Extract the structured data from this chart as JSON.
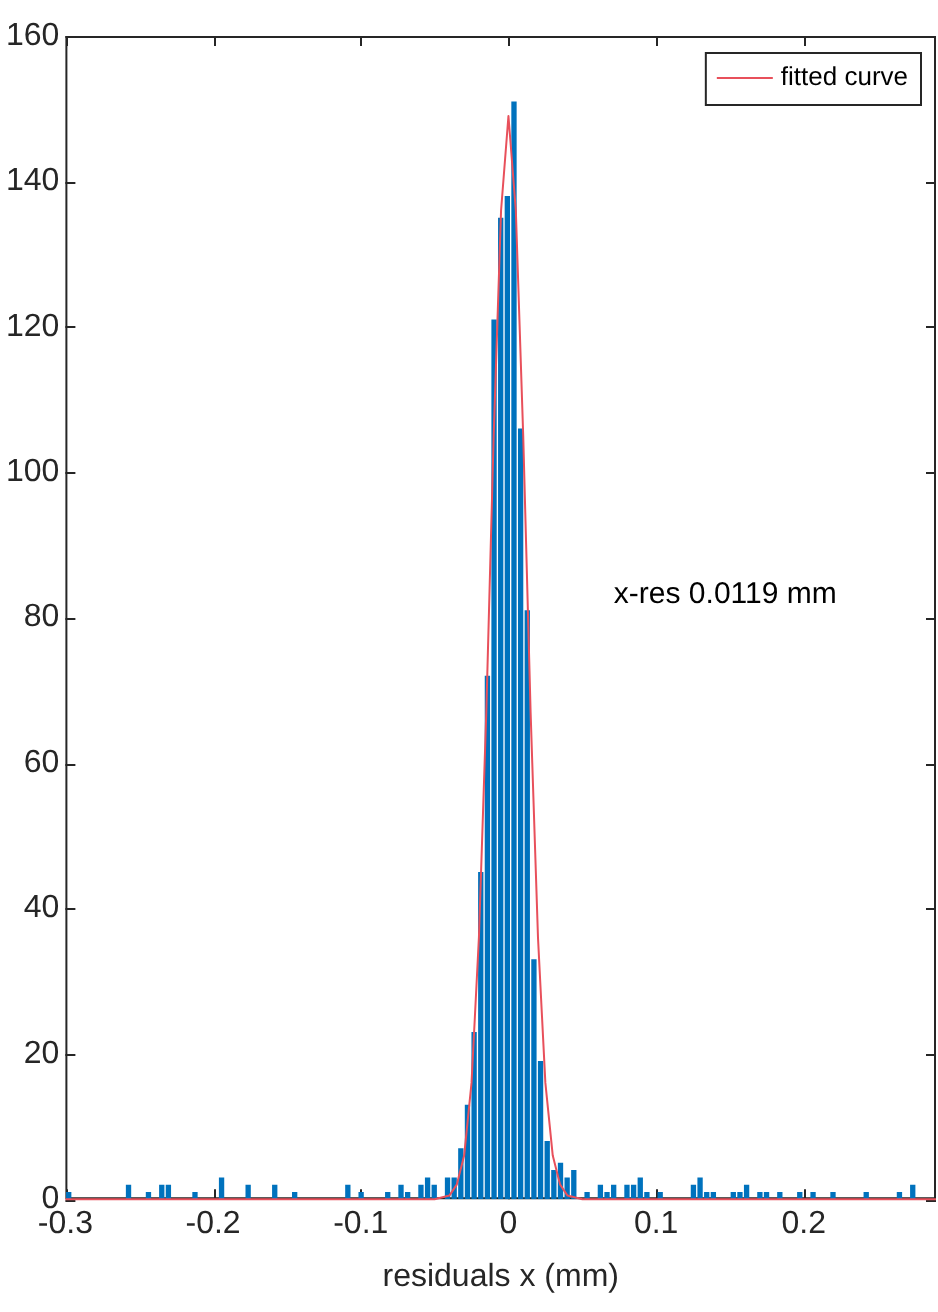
{
  "chart_data": {
    "type": "histogram",
    "xlabel": "residuals x (mm)",
    "annotations": [
      "x-res 0.0119 mm"
    ],
    "legend": "top right",
    "xlim": [
      -0.3,
      0.2895
    ],
    "xticks": [
      -0.3,
      -0.2,
      -0.1,
      0,
      0.1,
      0.2
    ],
    "ylim": [
      0,
      160
    ],
    "yticks": [
      0,
      20,
      40,
      60,
      80,
      100,
      120,
      140,
      160
    ],
    "color": "#0072bd",
    "bins": [
      -0.3,
      -0.2955,
      -0.291,
      -0.2865,
      -0.282,
      -0.2775,
      -0.273,
      -0.2685,
      -0.264,
      -0.2595,
      -0.255,
      -0.2505,
      -0.246,
      -0.2415,
      -0.237,
      -0.2325,
      -0.228,
      -0.2235,
      -0.219,
      -0.2145,
      -0.21,
      -0.2055,
      -0.201,
      -0.1965,
      -0.192,
      -0.1875,
      -0.183,
      -0.1785,
      -0.174,
      -0.1695,
      -0.165,
      -0.1605,
      -0.156,
      -0.1515,
      -0.147,
      -0.1425,
      -0.138,
      -0.1335,
      -0.129,
      -0.1245,
      -0.12,
      -0.1155,
      -0.111,
      -0.1065,
      -0.102,
      -0.0975,
      -0.093,
      -0.0885,
      -0.084,
      -0.0795,
      -0.075,
      -0.0705,
      -0.066,
      -0.0615,
      -0.057,
      -0.0525,
      -0.048,
      -0.0435,
      -0.039,
      -0.0345,
      -0.03,
      -0.0255,
      -0.021,
      -0.0165,
      -0.012,
      -0.0075,
      -0.003,
      0.0015,
      0.006,
      0.0105,
      0.015,
      0.0195,
      0.024,
      0.0285,
      0.033,
      0.0375,
      0.042,
      0.0465,
      0.051,
      0.0555,
      0.06,
      0.0645,
      0.069,
      0.0735,
      0.078,
      0.0825,
      0.087,
      0.0915,
      0.096,
      0.1005,
      0.105,
      0.1095,
      0.114,
      0.1185,
      0.123,
      0.1275,
      0.132,
      0.1365,
      0.141,
      0.1455,
      0.15,
      0.1545,
      0.159,
      0.1635,
      0.168,
      0.1725,
      0.177,
      0.1815,
      0.186,
      0.1905,
      0.195,
      0.1995,
      0.204,
      0.2085,
      0.213,
      0.2175,
      0.222,
      0.2265,
      0.231,
      0.2355,
      0.24,
      0.2445,
      0.249,
      0.2535,
      0.258,
      0.2625,
      0.267,
      0.2715,
      0.276,
      0.2805,
      0.285,
      0.2895
    ],
    "values": [
      1,
      0,
      0,
      0,
      0,
      0,
      0,
      0,
      0,
      2,
      0,
      0,
      1,
      0,
      2,
      2,
      0,
      0,
      0,
      1,
      0,
      0,
      0,
      3,
      0,
      0,
      0,
      2,
      0,
      0,
      0,
      2,
      0,
      0,
      1,
      0,
      0,
      0,
      0,
      0,
      0,
      0,
      2,
      0,
      1,
      0,
      0,
      0,
      1,
      0,
      2,
      1,
      0,
      2,
      3,
      2,
      0,
      3,
      3,
      7,
      13,
      23,
      45,
      72,
      121,
      135,
      138,
      151,
      106,
      81,
      33,
      19,
      8,
      4,
      5,
      3,
      4,
      0,
      1,
      0,
      2,
      1,
      2,
      0,
      2,
      2,
      3,
      1,
      0,
      1,
      0,
      0,
      0,
      0,
      2,
      3,
      1,
      1,
      0,
      0,
      1,
      1,
      2,
      0,
      1,
      1,
      0,
      1,
      0,
      0,
      1,
      0,
      1,
      0,
      0,
      1,
      0,
      0,
      0,
      0,
      1,
      0,
      0,
      0,
      0,
      1,
      0,
      2,
      0,
      0,
      0
    ],
    "series": [
      {
        "type": "line",
        "name": "fitted curve",
        "color": "#e8505b",
        "x": [
          -0.3,
          -0.05,
          -0.04,
          -0.035,
          -0.03,
          -0.025,
          -0.02,
          -0.015,
          -0.01,
          -0.005,
          0,
          0.005,
          0.01,
          0.015,
          0.02,
          0.025,
          0.03,
          0.035,
          0.04,
          0.05,
          0.2895
        ],
        "values": [
          0,
          0,
          0.5,
          2,
          6,
          16,
          36,
          67,
          105,
          136,
          149,
          136,
          105,
          67,
          36,
          16,
          6,
          2,
          0.5,
          0,
          0
        ]
      }
    ]
  }
}
